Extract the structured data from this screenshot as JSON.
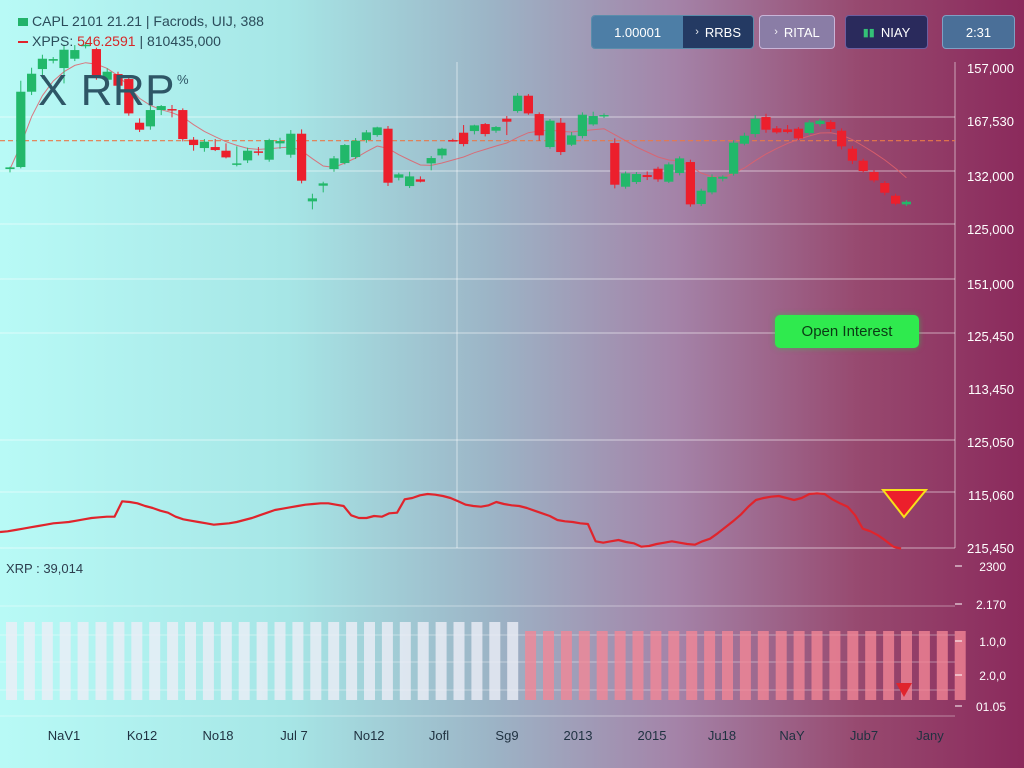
{
  "header": {
    "legend_line1": "CAPL 2101 21.21 | Facrods, UIJ, 388",
    "legend_line2_name": "XPPS:",
    "legend_line2_value": "546.2591",
    "legend_line2_extra": "| 810435,000",
    "title": "X RRP",
    "title_sup": "%"
  },
  "toolbar": {
    "value_field": "1.00001",
    "btn1_label": "RRBS",
    "btn1_icon": "chevron-right-icon",
    "btn2_label": "RITAL",
    "btn2_icon": "chevron-right-icon",
    "btn3_label": "NIAY",
    "btn3_icon": "chart-bars-icon",
    "time_label": "2:31"
  },
  "annotation": {
    "label": "Open Interest"
  },
  "indicator": {
    "label": "XRP : 39,014"
  },
  "colors": {
    "up": "#22b86a",
    "down": "#ec1f2c",
    "ma_line": "#e0606b",
    "dashed_level": "#e8794a",
    "badge": "#2fea4e"
  },
  "chart_data": {
    "type": "candlestick",
    "title": "X RRP",
    "grid": true,
    "y_axis_labels": [
      "157,000",
      "167,530",
      "132,000",
      "125,000",
      "151,000",
      "125,450",
      "113,450",
      "125,050",
      "115,060",
      "215,450"
    ],
    "x_axis_labels": [
      "NaV1",
      "Ko12",
      "No18",
      "Jul 7",
      "No12",
      "Jofl",
      "Sg9",
      "2013",
      "2015",
      "Ju18",
      "NaY",
      "Jub7",
      "Jany"
    ],
    "price_scale": [
      105000,
      170000
    ],
    "dashed_level": 136300,
    "candles": [
      {
        "o": 127800,
        "h": 128500,
        "l": 126800,
        "c": 128300
      },
      {
        "o": 128400,
        "h": 154300,
        "l": 128000,
        "c": 151000
      },
      {
        "o": 151000,
        "h": 158200,
        "l": 150000,
        "c": 156400
      },
      {
        "o": 157800,
        "h": 162100,
        "l": 154900,
        "c": 160900
      },
      {
        "o": 160300,
        "h": 161400,
        "l": 159500,
        "c": 160800
      },
      {
        "o": 158100,
        "h": 165100,
        "l": 153500,
        "c": 163600
      },
      {
        "o": 160900,
        "h": 165000,
        "l": 160200,
        "c": 163500
      },
      {
        "o": 164800,
        "h": 165900,
        "l": 164000,
        "c": 165100
      },
      {
        "o": 163800,
        "h": 164200,
        "l": 154600,
        "c": 155300
      },
      {
        "o": 154600,
        "h": 158000,
        "l": 153000,
        "c": 157000
      },
      {
        "o": 156300,
        "h": 157000,
        "l": 152000,
        "c": 152800
      },
      {
        "o": 154800,
        "h": 156000,
        "l": 143800,
        "c": 144500
      },
      {
        "o": 141700,
        "h": 143000,
        "l": 138900,
        "c": 139600
      },
      {
        "o": 140600,
        "h": 146800,
        "l": 139600,
        "c": 145500
      },
      {
        "o": 145500,
        "h": 147000,
        "l": 144000,
        "c": 146700
      },
      {
        "o": 145800,
        "h": 147000,
        "l": 143300,
        "c": 145600
      },
      {
        "o": 145500,
        "h": 146000,
        "l": 136100,
        "c": 136800
      },
      {
        "o": 136600,
        "h": 137400,
        "l": 133300,
        "c": 135000
      },
      {
        "o": 134100,
        "h": 136800,
        "l": 133000,
        "c": 136000
      },
      {
        "o": 134400,
        "h": 136800,
        "l": 133200,
        "c": 133500
      },
      {
        "o": 133300,
        "h": 135500,
        "l": 131000,
        "c": 131300
      },
      {
        "o": 129200,
        "h": 134600,
        "l": 128600,
        "c": 129500
      },
      {
        "o": 130400,
        "h": 134200,
        "l": 129600,
        "c": 133300
      },
      {
        "o": 133100,
        "h": 134400,
        "l": 131900,
        "c": 132900
      },
      {
        "o": 130600,
        "h": 136900,
        "l": 130000,
        "c": 136500
      },
      {
        "o": 135500,
        "h": 137200,
        "l": 133900,
        "c": 136200
      },
      {
        "o": 132100,
        "h": 139500,
        "l": 131200,
        "c": 138400
      },
      {
        "o": 138400,
        "h": 139700,
        "l": 123500,
        "c": 124300
      },
      {
        "o": 118100,
        "h": 120400,
        "l": 115700,
        "c": 119000
      },
      {
        "o": 122800,
        "h": 124000,
        "l": 120800,
        "c": 123500
      },
      {
        "o": 127800,
        "h": 131700,
        "l": 127000,
        "c": 131000
      },
      {
        "o": 129600,
        "h": 135300,
        "l": 129200,
        "c": 135000
      },
      {
        "o": 131400,
        "h": 137100,
        "l": 130800,
        "c": 136300
      },
      {
        "o": 136500,
        "h": 139500,
        "l": 135700,
        "c": 138800
      },
      {
        "o": 138000,
        "h": 140500,
        "l": 137500,
        "c": 140300
      },
      {
        "o": 139900,
        "h": 140700,
        "l": 122700,
        "c": 123700
      },
      {
        "o": 125200,
        "h": 126700,
        "l": 124400,
        "c": 126200
      },
      {
        "o": 122700,
        "h": 127000,
        "l": 122100,
        "c": 125600
      },
      {
        "o": 124700,
        "h": 125600,
        "l": 123800,
        "c": 124000
      },
      {
        "o": 129500,
        "h": 131700,
        "l": 127400,
        "c": 131100
      },
      {
        "o": 131900,
        "h": 134200,
        "l": 130900,
        "c": 133900
      },
      {
        "o": 136500,
        "h": 136900,
        "l": 136000,
        "c": 136200
      },
      {
        "o": 138700,
        "h": 141000,
        "l": 134600,
        "c": 135300
      },
      {
        "o": 139200,
        "h": 141100,
        "l": 138200,
        "c": 140900
      },
      {
        "o": 141300,
        "h": 141600,
        "l": 137600,
        "c": 138300
      },
      {
        "o": 139300,
        "h": 140700,
        "l": 138700,
        "c": 140400
      },
      {
        "o": 142900,
        "h": 143700,
        "l": 138000,
        "c": 142000
      },
      {
        "o": 145200,
        "h": 150600,
        "l": 144700,
        "c": 149800
      },
      {
        "o": 149800,
        "h": 150300,
        "l": 144100,
        "c": 144500
      },
      {
        "o": 144300,
        "h": 144800,
        "l": 136300,
        "c": 137900
      },
      {
        "o": 134400,
        "h": 142800,
        "l": 133900,
        "c": 142300
      },
      {
        "o": 141700,
        "h": 143100,
        "l": 132000,
        "c": 132900
      },
      {
        "o": 135100,
        "h": 138900,
        "l": 134700,
        "c": 137900
      },
      {
        "o": 137700,
        "h": 144800,
        "l": 137000,
        "c": 144100
      },
      {
        "o": 141200,
        "h": 145000,
        "l": 140800,
        "c": 143700
      },
      {
        "o": 143700,
        "h": 144500,
        "l": 143100,
        "c": 144000
      },
      {
        "o": 135600,
        "h": 137000,
        "l": 122000,
        "c": 123100
      },
      {
        "o": 122500,
        "h": 127100,
        "l": 121900,
        "c": 126500
      },
      {
        "o": 123900,
        "h": 126900,
        "l": 123300,
        "c": 126300
      },
      {
        "o": 126000,
        "h": 127100,
        "l": 124500,
        "c": 125400
      },
      {
        "o": 127900,
        "h": 128500,
        "l": 124000,
        "c": 124700
      },
      {
        "o": 124000,
        "h": 129800,
        "l": 123600,
        "c": 129200
      },
      {
        "o": 126600,
        "h": 131600,
        "l": 125900,
        "c": 131000
      },
      {
        "o": 129900,
        "h": 130600,
        "l": 116500,
        "c": 117200
      },
      {
        "o": 117300,
        "h": 121900,
        "l": 116700,
        "c": 121300
      },
      {
        "o": 120800,
        "h": 126200,
        "l": 120200,
        "c": 125400
      },
      {
        "o": 124900,
        "h": 125900,
        "l": 124100,
        "c": 125500
      },
      {
        "o": 126400,
        "h": 136400,
        "l": 125800,
        "c": 135700
      },
      {
        "o": 135400,
        "h": 138700,
        "l": 134900,
        "c": 137800
      },
      {
        "o": 138300,
        "h": 144000,
        "l": 137300,
        "c": 142900
      },
      {
        "o": 143400,
        "h": 144400,
        "l": 138700,
        "c": 139600
      },
      {
        "o": 140000,
        "h": 140700,
        "l": 138400,
        "c": 138800
      },
      {
        "o": 139700,
        "h": 141000,
        "l": 138500,
        "c": 138900
      },
      {
        "o": 139900,
        "h": 140400,
        "l": 136500,
        "c": 137000
      },
      {
        "o": 138600,
        "h": 142500,
        "l": 137900,
        "c": 141800
      },
      {
        "o": 141300,
        "h": 142900,
        "l": 140600,
        "c": 142300
      },
      {
        "o": 141900,
        "h": 142500,
        "l": 138900,
        "c": 139800
      },
      {
        "o": 139300,
        "h": 140000,
        "l": 133700,
        "c": 134600
      },
      {
        "o": 133900,
        "h": 134700,
        "l": 129300,
        "c": 130300
      },
      {
        "o": 130300,
        "h": 130900,
        "l": 126800,
        "c": 127200
      },
      {
        "o": 126900,
        "h": 127500,
        "l": 123800,
        "c": 124400
      },
      {
        "o": 123600,
        "h": 124200,
        "l": 119900,
        "c": 120700
      },
      {
        "o": 119800,
        "h": 120400,
        "l": 116900,
        "c": 117400
      },
      {
        "o": 117200,
        "h": 118500,
        "l": 116700,
        "c": 118000
      }
    ],
    "ma": [
      127800,
      135000,
      143500,
      149800,
      154200,
      157000,
      158900,
      159700,
      159300,
      158000,
      155800,
      152600,
      149000,
      146900,
      145600,
      144700,
      143400,
      141100,
      139100,
      137500,
      136000,
      134900,
      134000,
      133700,
      133900,
      134200,
      134400,
      133300,
      130900,
      128700,
      128300,
      129600,
      131100,
      133000,
      134700,
      134000,
      132100,
      130500,
      129000,
      128900,
      129600,
      130500,
      131400,
      132700,
      133700,
      134700,
      135600,
      137300,
      138700,
      139200,
      139500,
      139100,
      138900,
      139300,
      139600,
      139900,
      138100,
      136300,
      134400,
      132900,
      131400,
      130500,
      130300,
      128600,
      126600,
      125500,
      125200,
      126500,
      128100,
      130300,
      132300,
      134000,
      135500,
      136700,
      137700,
      138600,
      138700,
      138000,
      136600,
      134700,
      132700,
      130500,
      128000,
      125200
    ],
    "indicator": {
      "label": "XRP : 39,014",
      "y_axis_labels": [
        "2300",
        "2.170",
        "1.0,0",
        "2.0,0",
        "01.05"
      ],
      "line": [
        2.02,
        2.03,
        2.05,
        2.07,
        2.09,
        2.11,
        2.13,
        2.15,
        2.16,
        2.17,
        2.19,
        2.21,
        2.23,
        2.24,
        2.25,
        2.25,
        2.48,
        2.47,
        2.45,
        2.41,
        2.38,
        2.34,
        2.31,
        2.25,
        2.21,
        2.19,
        2.17,
        2.15,
        2.13,
        2.14,
        2.15,
        2.17,
        2.2,
        2.23,
        2.27,
        2.31,
        2.35,
        2.37,
        2.39,
        2.41,
        2.43,
        2.44,
        2.45,
        2.45,
        2.43,
        2.41,
        2.27,
        2.23,
        2.23,
        2.26,
        2.25,
        2.3,
        2.31,
        2.51,
        2.53,
        2.57,
        2.59,
        2.58,
        2.56,
        2.53,
        2.48,
        2.43,
        2.41,
        2.4,
        2.42,
        2.47,
        2.44,
        2.42,
        2.41,
        2.38,
        2.34,
        2.3,
        2.26,
        2.2,
        2.18,
        2.17,
        2.15,
        2.14,
        1.88,
        1.86,
        1.88,
        1.9,
        1.87,
        1.85,
        1.8,
        1.81,
        1.84,
        1.86,
        1.88,
        1.86,
        1.84,
        1.83,
        1.88,
        1.92,
        2.0,
        2.09,
        2.18,
        2.28,
        2.4,
        2.5,
        2.53,
        2.55,
        2.56,
        2.53,
        2.5,
        2.53,
        2.59,
        2.6,
        2.59,
        2.51,
        2.45,
        2.4,
        2.27,
        2.07,
        2.03,
        1.97,
        1.89,
        1.8,
        1.77
      ],
      "bars_split_index": 29
    }
  }
}
